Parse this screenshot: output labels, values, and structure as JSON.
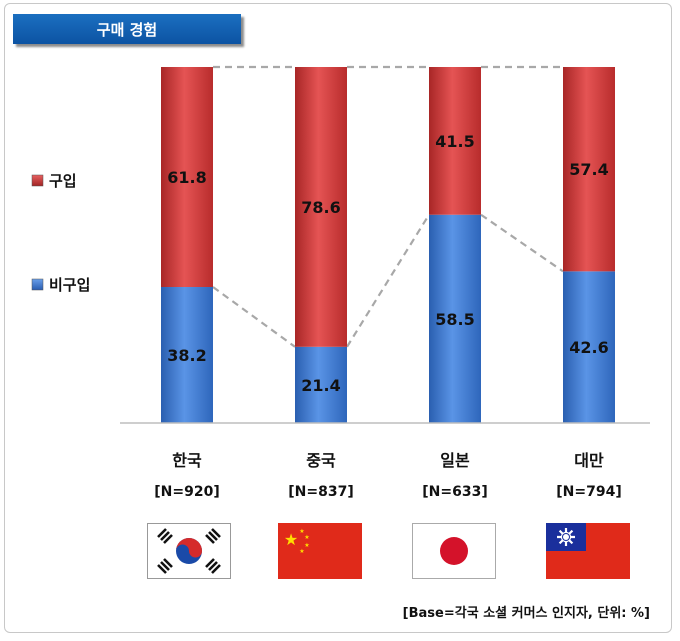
{
  "title": "구매 경험",
  "footnote": "[Base=각국 소셜 커머스 인지자, 단위: %]",
  "chart_data": {
    "type": "bar",
    "stacked": true,
    "categories": [
      "한국",
      "중국",
      "일본",
      "대만"
    ],
    "sample_sizes": [
      "[N=920]",
      "[N=837]",
      "[N=633]",
      "[N=794]"
    ],
    "ylim": [
      0,
      100
    ],
    "legend_position": "left",
    "series": [
      {
        "name": "비구입",
        "values": [
          38.2,
          21.4,
          58.5,
          42.6
        ],
        "color": "#3a78d6",
        "labels": [
          "38.2",
          "21.4",
          "58.5",
          "42.6"
        ]
      },
      {
        "name": "구입",
        "values": [
          61.8,
          78.6,
          41.5,
          57.4
        ],
        "color": "#d63c3c",
        "labels": [
          "61.8",
          "78.6",
          "41.5",
          "57.4"
        ]
      }
    ]
  },
  "flags": [
    {
      "country": "한국",
      "icon": "south-korea-flag-icon"
    },
    {
      "country": "중국",
      "icon": "china-flag-icon"
    },
    {
      "country": "일본",
      "icon": "japan-flag-icon"
    },
    {
      "country": "대만",
      "icon": "taiwan-flag-icon"
    }
  ]
}
